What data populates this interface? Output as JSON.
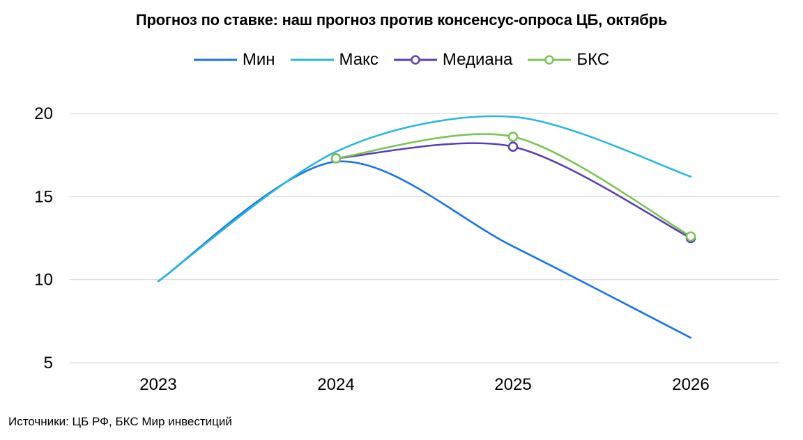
{
  "chart_data": {
    "type": "line",
    "title": "Прогноз по ставке: наш прогноз против консенсус-опроса ЦБ, октябрь",
    "source": "Источники: ЦБ РФ, БКС Мир инвестиций",
    "x": [
      "2023",
      "2024",
      "2025",
      "2026"
    ],
    "ylim": [
      5,
      20
    ],
    "yticks": [
      5,
      10,
      15,
      20
    ],
    "grid": true,
    "legend_position": "top-center",
    "series": [
      {
        "name": "Мин",
        "color": "#1a73e8",
        "markers": false,
        "values": [
          9.9,
          17.1,
          12.0,
          6.5
        ]
      },
      {
        "name": "Макс",
        "color": "#2bb5e0",
        "markers": false,
        "values": [
          9.9,
          17.7,
          19.8,
          16.2
        ]
      },
      {
        "name": "Медиана",
        "color": "#5b3fb3",
        "markers": true,
        "values": [
          null,
          17.3,
          18.0,
          12.5
        ]
      },
      {
        "name": "БКС",
        "color": "#7cc454",
        "markers": true,
        "values": [
          null,
          17.3,
          18.6,
          12.6
        ]
      }
    ]
  }
}
